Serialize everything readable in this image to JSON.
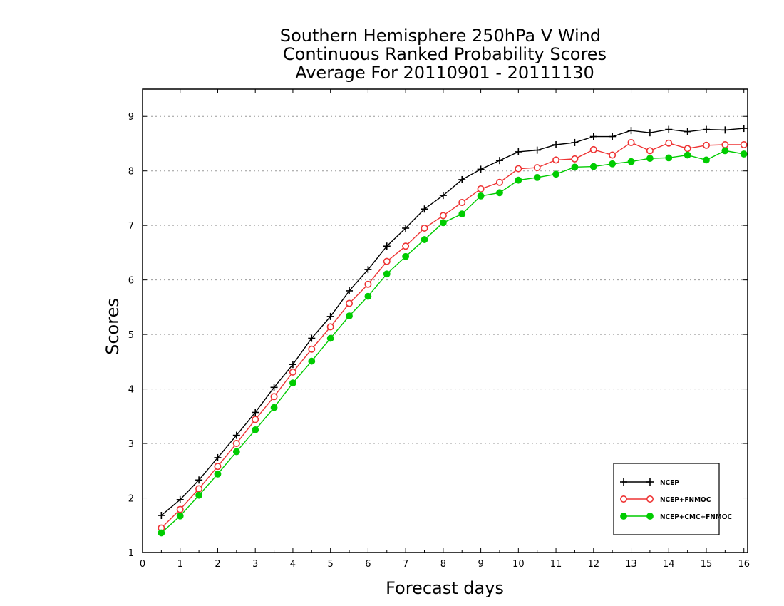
{
  "chart_data": {
    "type": "line",
    "title": [
      "Southern Hemisphere 250hPa V Wind",
      "Continuous Ranked Probability Scores",
      "Average For 20110901 - 20111130"
    ],
    "xlabel": "Forecast days",
    "ylabel": "Scores",
    "xlim": [
      0,
      16.1
    ],
    "ylim": [
      1,
      9.5
    ],
    "xticks": [
      0,
      1,
      2,
      3,
      4,
      5,
      6,
      7,
      8,
      9,
      10,
      11,
      12,
      13,
      14,
      15,
      16
    ],
    "yticks": [
      1,
      2,
      3,
      4,
      5,
      6,
      7,
      8,
      9
    ],
    "grid": "horizontal dotted",
    "legend_position": "bottom-right",
    "x": [
      0.5,
      1,
      1.5,
      2,
      2.5,
      3,
      3.5,
      4,
      4.5,
      5,
      5.5,
      6,
      6.5,
      7,
      7.5,
      8,
      8.5,
      9,
      9.5,
      10,
      10.5,
      11,
      11.5,
      12,
      12.5,
      13,
      13.5,
      14,
      14.5,
      15,
      15.5,
      16
    ],
    "series": [
      {
        "name": "NCEP",
        "color": "#000000",
        "marker": "plus",
        "values": [
          1.68,
          1.97,
          2.33,
          2.74,
          3.15,
          3.57,
          4.03,
          4.45,
          4.93,
          5.33,
          5.8,
          6.19,
          6.62,
          6.95,
          7.3,
          7.55,
          7.84,
          8.03,
          8.19,
          8.35,
          8.38,
          8.48,
          8.52,
          8.63,
          8.63,
          8.74,
          8.7,
          8.76,
          8.72,
          8.76,
          8.75,
          8.78
        ]
      },
      {
        "name": "NCEP+FNMOC",
        "color": "#ee3333",
        "marker": "open-circle",
        "values": [
          1.45,
          1.79,
          2.17,
          2.58,
          3.0,
          3.44,
          3.86,
          4.31,
          4.73,
          5.14,
          5.57,
          5.92,
          6.34,
          6.62,
          6.95,
          7.18,
          7.42,
          7.67,
          7.79,
          8.04,
          8.06,
          8.2,
          8.22,
          8.39,
          8.29,
          8.52,
          8.37,
          8.51,
          8.41,
          8.47,
          8.48,
          8.48
        ]
      },
      {
        "name": "NCEP+CMC+FNMOC",
        "color": "#00cc00",
        "marker": "filled-circle",
        "values": [
          1.36,
          1.67,
          2.05,
          2.44,
          2.85,
          3.25,
          3.66,
          4.11,
          4.51,
          4.93,
          5.34,
          5.7,
          6.11,
          6.43,
          6.74,
          7.05,
          7.21,
          7.54,
          7.6,
          7.83,
          7.88,
          7.94,
          8.07,
          8.08,
          8.13,
          8.17,
          8.23,
          8.24,
          8.29,
          8.2,
          8.37,
          8.31
        ]
      }
    ]
  }
}
